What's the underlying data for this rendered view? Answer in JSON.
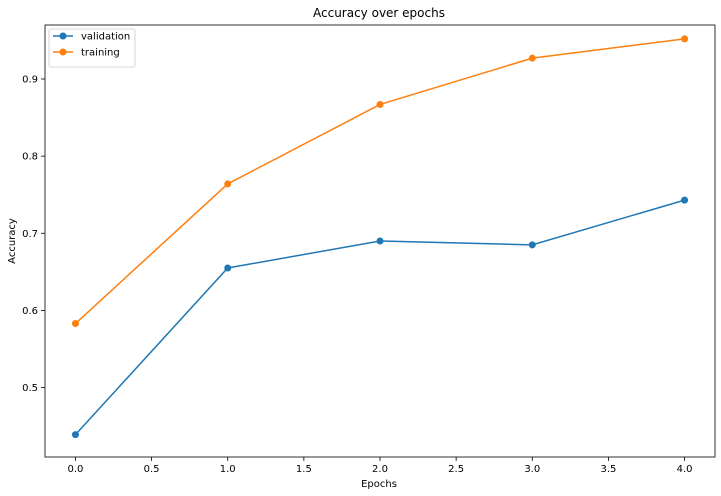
{
  "chart_data": {
    "type": "line",
    "title": "Accuracy over epochs",
    "xlabel": "Epochs",
    "ylabel": "Accuracy",
    "xlim": [
      -0.2,
      4.2
    ],
    "ylim": [
      0.41,
      0.97
    ],
    "xticks": [
      0.0,
      0.5,
      1.0,
      1.5,
      2.0,
      2.5,
      3.0,
      3.5,
      4.0
    ],
    "xtick_labels": [
      "0.0",
      "0.5",
      "1.0",
      "1.5",
      "2.0",
      "2.5",
      "3.0",
      "3.5",
      "4.0"
    ],
    "yticks": [
      0.5,
      0.6,
      0.7,
      0.8,
      0.9
    ],
    "ytick_labels": [
      "0.5",
      "0.6",
      "0.7",
      "0.8",
      "0.9"
    ],
    "grid": false,
    "legend_position": "top-left",
    "x": [
      0,
      1,
      2,
      3,
      4
    ],
    "series": [
      {
        "name": "validation",
        "color": "#1f77b4",
        "marker": "circle",
        "values": [
          0.439,
          0.655,
          0.69,
          0.685,
          0.743
        ]
      },
      {
        "name": "training",
        "color": "#ff7f0e",
        "marker": "circle",
        "values": [
          0.583,
          0.764,
          0.867,
          0.927,
          0.952
        ]
      }
    ]
  }
}
